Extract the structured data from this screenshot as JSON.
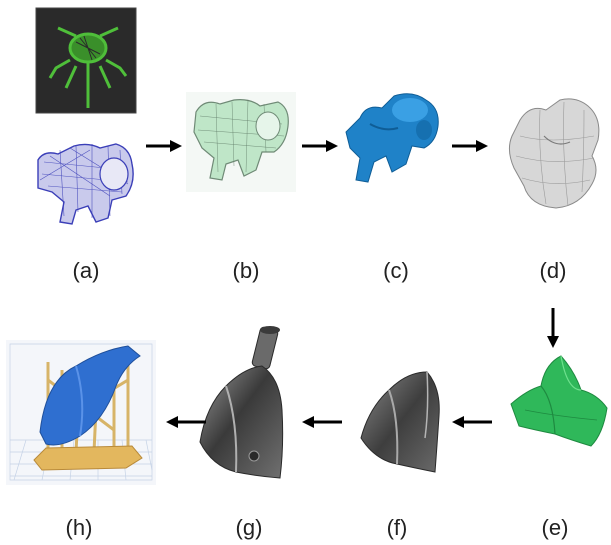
{
  "labels": {
    "a": "(a)",
    "b": "(b)",
    "c": "(c)",
    "d": "(d)",
    "e": "(e)",
    "f": "(f)",
    "g": "(g)",
    "h": "(h)"
  },
  "colors": {
    "ct_background": "#2a2a2a",
    "ct_bone": "#4fbf3a",
    "wireframe_blue": "#3b3fb8",
    "mesh_green_light": "#bfe6c8",
    "solid_blue": "#1f82c8",
    "surface_gray": "#d7d7d7",
    "scaffold_green": "#2fb85a",
    "metal_dark": "#5a5a5a",
    "print_blue": "#2f6fd0",
    "print_support": "#e3b75e",
    "arrow": "#000000"
  },
  "icons": {
    "flow_arrow": "arrow-icon"
  }
}
